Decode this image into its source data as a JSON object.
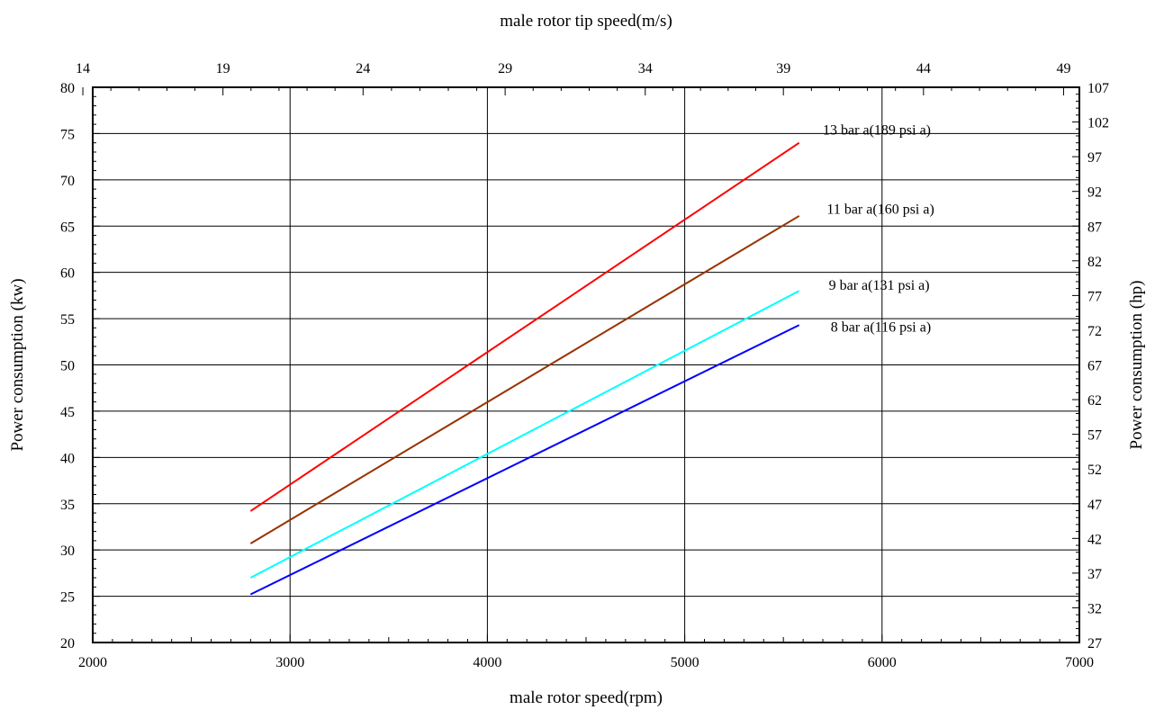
{
  "chart_data": {
    "type": "line",
    "title": "",
    "xlabel": "male rotor speed(rpm)",
    "x2label": "male rotor tip speed(m/s)",
    "ylabel": "Power consumption (kw)",
    "y2label": "Power consumption (hp)",
    "xlim": [
      2000,
      7000
    ],
    "ylim": [
      20,
      80
    ],
    "x_ticks": [
      2000,
      3000,
      4000,
      5000,
      6000,
      7000
    ],
    "y_ticks": [
      20,
      25,
      30,
      35,
      40,
      45,
      50,
      55,
      60,
      65,
      70,
      75,
      80
    ],
    "x2_ticks": [
      "14",
      "19",
      "24",
      "29",
      "34",
      "39",
      "44",
      "49"
    ],
    "x2_tick_rpm": [
      1950,
      2660,
      3370,
      4090,
      4800,
      5500,
      6210,
      6920
    ],
    "y2_ticks": [
      "27",
      "32",
      "37",
      "42",
      "47",
      "52",
      "57",
      "62",
      "67",
      "72",
      "77",
      "82",
      "87",
      "92",
      "97",
      "102",
      "107"
    ],
    "y2_tick_kw": [
      20,
      23.75,
      27.5,
      31.25,
      35,
      38.75,
      42.5,
      46.25,
      50,
      53.75,
      57.5,
      61.25,
      65,
      68.75,
      72.5,
      76.25,
      80
    ],
    "grid": true,
    "series": [
      {
        "name": "13 bar a(189 psi a)",
        "color": "#ff0000",
        "x": [
          2800,
          5580
        ],
        "values": [
          34.2,
          74.0
        ],
        "label_at": [
          5700,
          75.5
        ]
      },
      {
        "name": "11 bar a(160 psi a)",
        "color": "#993300",
        "x": [
          2800,
          5580
        ],
        "values": [
          30.7,
          66.1
        ],
        "label_at": [
          5720,
          66.9
        ]
      },
      {
        "name": "9 bar a(131 psi a)",
        "color": "#00ffff",
        "x": [
          2800,
          5580
        ],
        "values": [
          27.0,
          58.0
        ],
        "label_at": [
          5730,
          58.7
        ]
      },
      {
        "name": "8 bar a(116 psi a)",
        "color": "#0000ff",
        "x": [
          2800,
          5580
        ],
        "values": [
          25.2,
          54.3
        ],
        "label_at": [
          5740,
          54.2
        ]
      }
    ]
  }
}
